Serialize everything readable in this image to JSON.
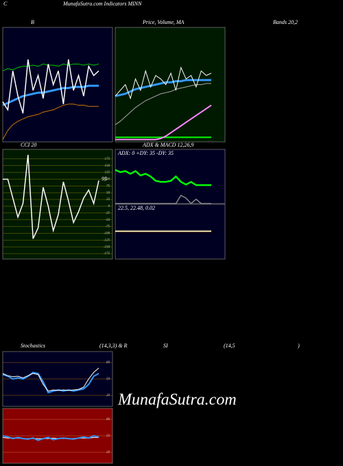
{
  "header": {
    "corner": "C",
    "title": "MunafaSutra.com Indicators MINN",
    "bands": "Bands 20,2",
    "watermark": "MunafaSutra.com"
  },
  "stochastics_title": [
    "Stochastics",
    "(14,3,3) & R",
    "SI",
    "(14,5",
    ")"
  ],
  "chart_data": [
    {
      "type": "line",
      "title": "B",
      "ylim": [
        0,
        100
      ],
      "background": "#000022",
      "series": [
        {
          "color": "#00cc00",
          "width": 1,
          "values": [
            62,
            64,
            63,
            65,
            66,
            66,
            67,
            66,
            68,
            67,
            67,
            66,
            68,
            67,
            68,
            68,
            67,
            68,
            67,
            68
          ]
        },
        {
          "color": "#3399ff",
          "width": 3,
          "values": [
            32,
            34,
            36,
            38,
            40,
            41,
            42,
            43,
            43,
            44,
            45,
            46,
            47,
            47,
            48,
            48,
            48,
            49,
            49,
            49
          ]
        },
        {
          "color": "#ffffff",
          "width": 1.5,
          "values": [
            35,
            28,
            62,
            40,
            25,
            72,
            45,
            58,
            38,
            68,
            50,
            62,
            33,
            72,
            45,
            58,
            40,
            66,
            58,
            62
          ]
        },
        {
          "color": "#cc7700",
          "width": 1,
          "values": [
            2,
            10,
            15,
            18,
            20,
            22,
            23,
            24,
            26,
            27,
            28,
            30,
            32,
            33,
            33,
            32,
            32,
            31,
            31,
            31
          ]
        }
      ]
    },
    {
      "type": "line",
      "title": "Price, Volume, MA",
      "ylim": [
        0,
        100
      ],
      "background": "#001a00",
      "series": [
        {
          "color": "#00ff00",
          "width": 2,
          "values": [
            4,
            4,
            4,
            4,
            4,
            4,
            4,
            4,
            4,
            4,
            4,
            4,
            4,
            4,
            4,
            4,
            4,
            4,
            4,
            4
          ]
        },
        {
          "color": "#aaaaaa",
          "width": 1,
          "values": [
            15,
            18,
            22,
            26,
            30,
            33,
            36,
            38,
            40,
            42,
            43,
            44,
            46,
            47,
            48,
            49,
            50,
            50,
            51,
            51
          ]
        },
        {
          "color": "#ff88ff",
          "width": 2,
          "values": [
            2,
            2,
            2,
            2,
            2,
            2,
            2,
            2,
            2,
            3,
            5,
            8,
            11,
            14,
            17,
            20,
            23,
            26,
            29,
            32
          ]
        },
        {
          "color": "#3399ff",
          "width": 3,
          "values": [
            40,
            41,
            42,
            44,
            46,
            47,
            48,
            49,
            50,
            51,
            52,
            52,
            53,
            53,
            54,
            54,
            54,
            54,
            54,
            54
          ]
        },
        {
          "color": "#ffffff",
          "width": 1,
          "values": [
            40,
            45,
            50,
            38,
            55,
            45,
            62,
            48,
            58,
            55,
            50,
            60,
            45,
            65,
            55,
            58,
            48,
            62,
            58,
            60
          ]
        }
      ]
    },
    {
      "type": "line",
      "title": "CCI 20",
      "ylim": [
        -195,
        210
      ],
      "background": "#001a00",
      "grid": true,
      "grid_color": "#666600",
      "yticks": [
        175,
        150,
        125,
        100,
        75,
        50,
        25,
        0,
        -25,
        -50,
        -75,
        -100,
        -125,
        -150,
        -175
      ],
      "series": [
        {
          "color": "#ffffff",
          "width": 1.5,
          "values": [
            100,
            100,
            30,
            -40,
            10,
            190,
            -120,
            -80,
            70,
            0,
            -90,
            -30,
            90,
            20,
            -60,
            -20,
            30,
            60,
            10,
            95
          ],
          "value_labels": [
            "95"
          ]
        }
      ]
    },
    {
      "type": "line",
      "title": "ADX  & MACD 12,26,9",
      "annotation": "ADX: 0  +DY: 35 -DY: 35",
      "ylim": [
        0,
        100
      ],
      "background": "#000022",
      "series": [
        {
          "color": "#888888",
          "width": 1.5,
          "values": [
            0,
            0,
            0,
            0,
            0,
            0,
            0,
            0,
            0,
            0,
            0,
            0,
            0,
            15,
            10,
            0,
            8,
            0,
            0,
            0
          ]
        },
        {
          "color": "#00ff00",
          "width": 2.5,
          "values": [
            62,
            58,
            60,
            55,
            60,
            52,
            55,
            50,
            42,
            40,
            40,
            42,
            50,
            40,
            35,
            40,
            34,
            34,
            34,
            34
          ]
        }
      ]
    },
    {
      "type": "line",
      "annotation": "22.5,  22.48,  0.02",
      "ylim": [
        0,
        100
      ],
      "background": "#000022",
      "series": [
        {
          "color": "#ffaa33",
          "width": 1,
          "values": [
            50,
            50,
            50,
            50,
            50,
            50,
            50,
            50,
            50,
            50,
            50,
            50,
            50,
            50,
            50,
            50,
            50,
            50,
            50,
            50
          ]
        },
        {
          "color": "#ffffcc",
          "width": 1.5,
          "values": [
            51,
            51,
            51,
            51,
            51,
            51,
            51,
            51,
            51,
            51,
            51,
            51,
            51,
            51,
            51,
            51,
            51,
            51,
            51,
            51
          ]
        }
      ]
    },
    {
      "type": "line",
      "ylim": [
        0,
        100
      ],
      "background": "#000022",
      "grid": true,
      "grid_color": "#aa6600",
      "yticks": [
        80,
        50,
        20
      ],
      "series": [
        {
          "color": "#3399ff",
          "width": 2,
          "values": [
            58,
            55,
            50,
            52,
            50,
            55,
            62,
            60,
            45,
            25,
            28,
            30,
            28,
            30,
            28,
            30,
            32,
            40,
            55,
            60
          ]
        },
        {
          "color": "#ffffff",
          "width": 1,
          "values": [
            60,
            56,
            54,
            55,
            52,
            56,
            60,
            58,
            40,
            28,
            30,
            29,
            30,
            29,
            30,
            31,
            35,
            50,
            62,
            70
          ]
        }
      ]
    },
    {
      "type": "line",
      "ylim": [
        0,
        100
      ],
      "background": "#880000",
      "grid": true,
      "grid_color": "#cc6633",
      "yticks": [
        80,
        50,
        20
      ],
      "series": [
        {
          "color": "#ffffff",
          "width": 1,
          "values": [
            47,
            46,
            46,
            46,
            45,
            45,
            45,
            45,
            45,
            45,
            46,
            45,
            45,
            45,
            45,
            46,
            46,
            46,
            47,
            47
          ]
        },
        {
          "color": "#3399ff",
          "width": 2,
          "values": [
            50,
            48,
            45,
            47,
            45,
            44,
            46,
            42,
            45,
            47,
            43,
            45,
            46,
            45,
            44,
            46,
            48,
            46,
            50,
            48
          ]
        }
      ]
    }
  ]
}
